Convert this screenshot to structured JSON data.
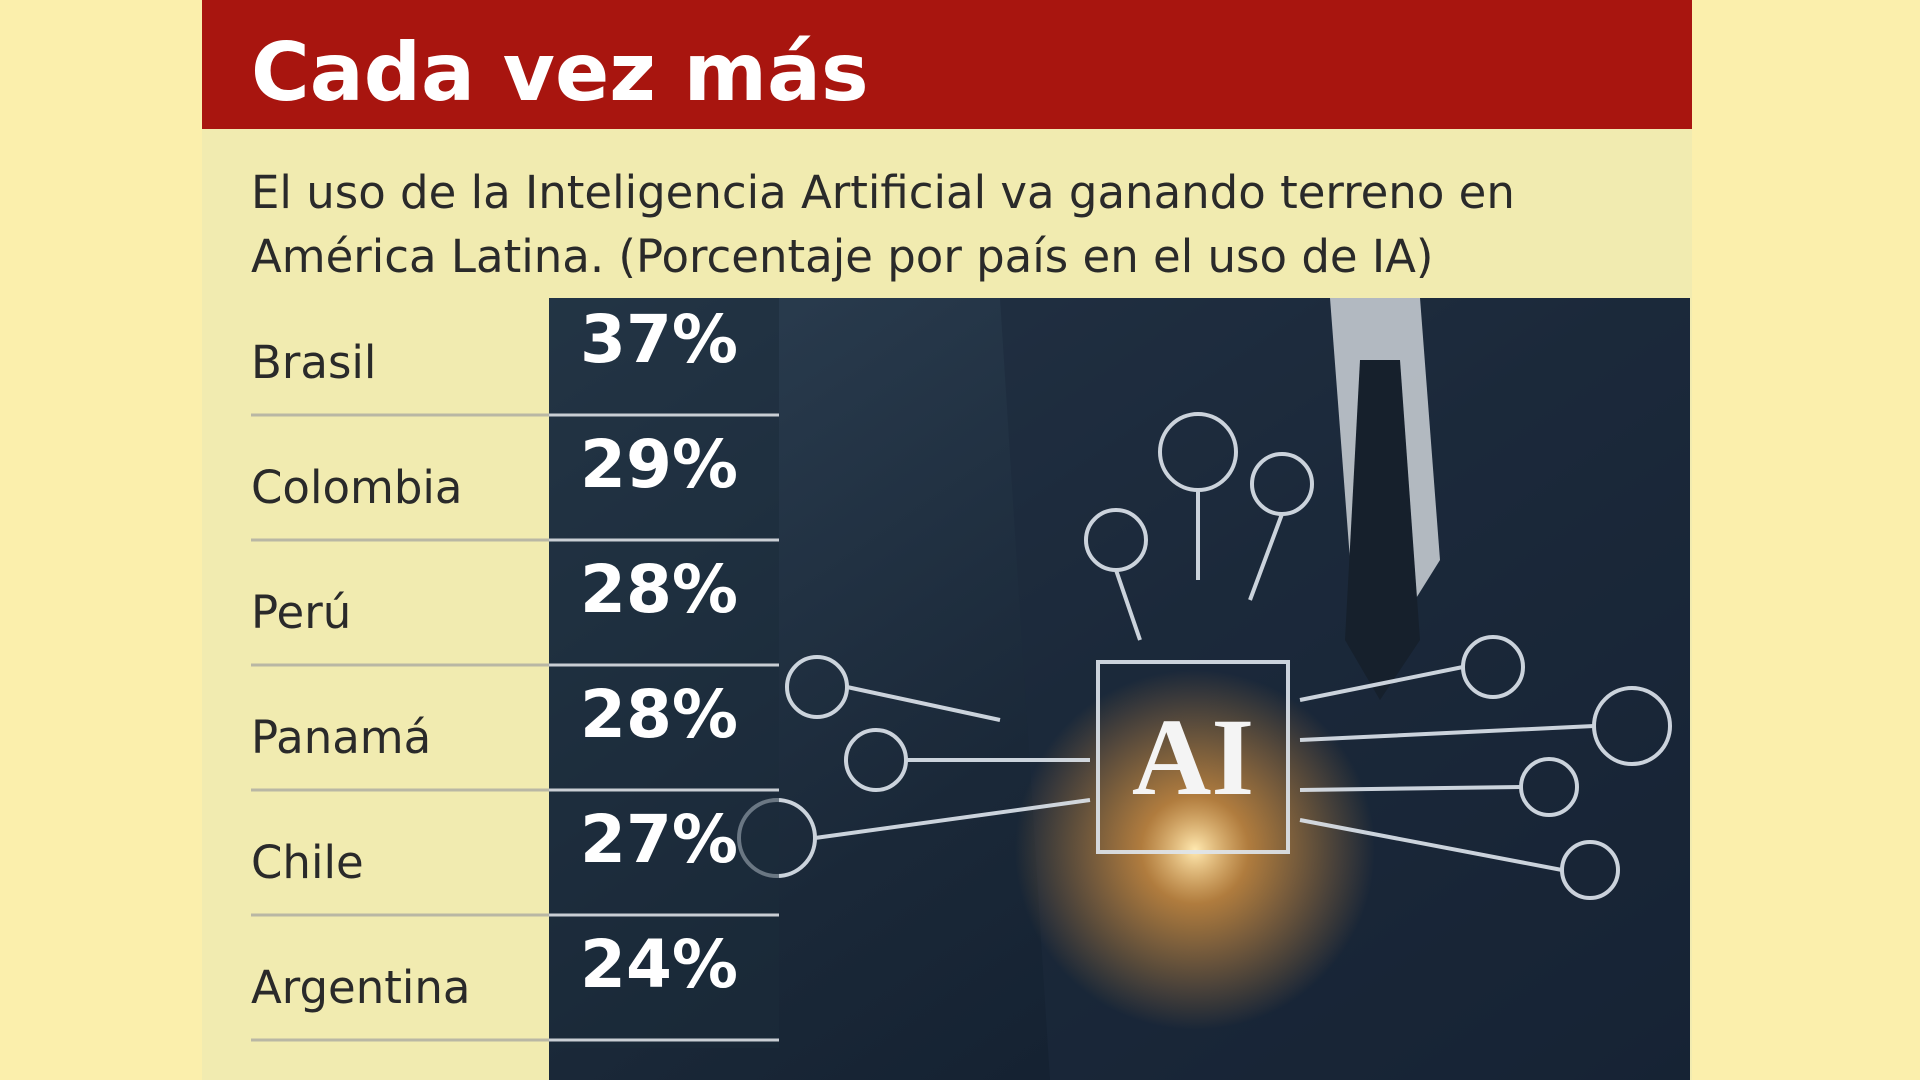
{
  "chart_data": {
    "type": "table",
    "title": "Cada vez más",
    "subtitle": [
      "El uso de la Inteligencia Artificial va ganando terreno en",
      "América Latina. (Porcentaje por país en el uso de IA)"
    ],
    "categories": [
      "Brasil",
      "Colombia",
      "Perú",
      "Panamá",
      "Chile",
      "Argentina"
    ],
    "values": [
      37,
      29,
      28,
      28,
      27,
      24
    ],
    "value_labels": [
      "37%",
      "29%",
      "28%",
      "28%",
      "27%",
      "24%"
    ]
  }
}
